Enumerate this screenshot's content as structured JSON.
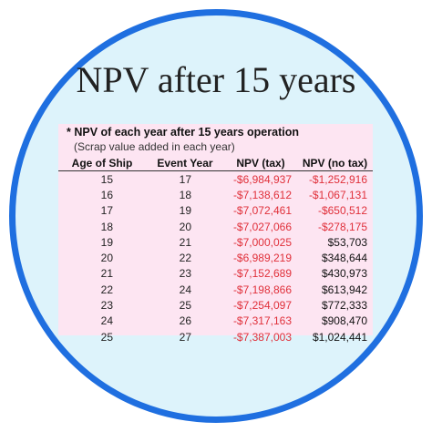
{
  "title": "NPV after 15 years",
  "table": {
    "note_line1": "* NPV of each year after 15 years operation",
    "note_line2": "(Scrap value added in each year)",
    "columns": [
      "Age of Ship",
      "Event Year",
      "NPV (tax)",
      "NPV (no tax)"
    ],
    "rows": [
      [
        "15",
        "17",
        "-$6,984,937",
        "-$1,252,916"
      ],
      [
        "16",
        "18",
        "-$7,138,612",
        "-$1,067,131"
      ],
      [
        "17",
        "19",
        "-$7,072,461",
        "-$650,512"
      ],
      [
        "18",
        "20",
        "-$7,027,066",
        "-$278,175"
      ],
      [
        "19",
        "21",
        "-$7,000,025",
        "$53,703"
      ],
      [
        "20",
        "22",
        "-$6,989,219",
        "$348,644"
      ],
      [
        "21",
        "23",
        "-$7,152,689",
        "$430,973"
      ],
      [
        "22",
        "24",
        "-$7,198,866",
        "$613,942"
      ],
      [
        "23",
        "25",
        "-$7,254,097",
        "$772,333"
      ],
      [
        "24",
        "26",
        "-$7,317,163",
        "$908,470"
      ],
      [
        "25",
        "27",
        "-$7,387,003",
        "$1,024,441"
      ]
    ]
  },
  "colors": {
    "ring": "#1f6fe0",
    "background": "#ddf3fb",
    "table_background": "#fde5f2",
    "negative": "#e0303a",
    "positive": "#111111"
  }
}
